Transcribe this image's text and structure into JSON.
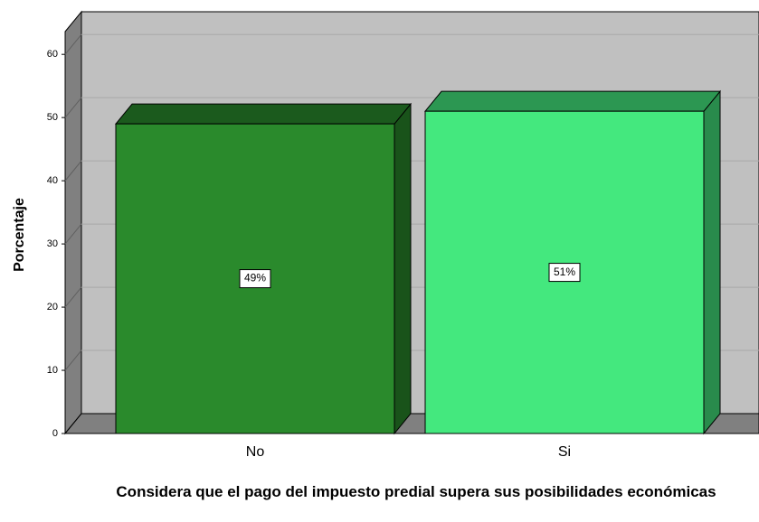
{
  "chart_data": {
    "type": "bar3d",
    "x_label": "Considera que el pago del impuesto predial supera sus posibilidades económicas",
    "y_label": "Porcentaje",
    "categories": [
      "No",
      "Si"
    ],
    "values": [
      49,
      51
    ],
    "value_labels": [
      "49%",
      "51%"
    ],
    "colors": [
      "#2a8a2c",
      "#44e87e"
    ],
    "ylim": [
      0,
      63.6
    ],
    "yticks": [
      0,
      10,
      20,
      30,
      40,
      50,
      60
    ],
    "grid": true
  }
}
